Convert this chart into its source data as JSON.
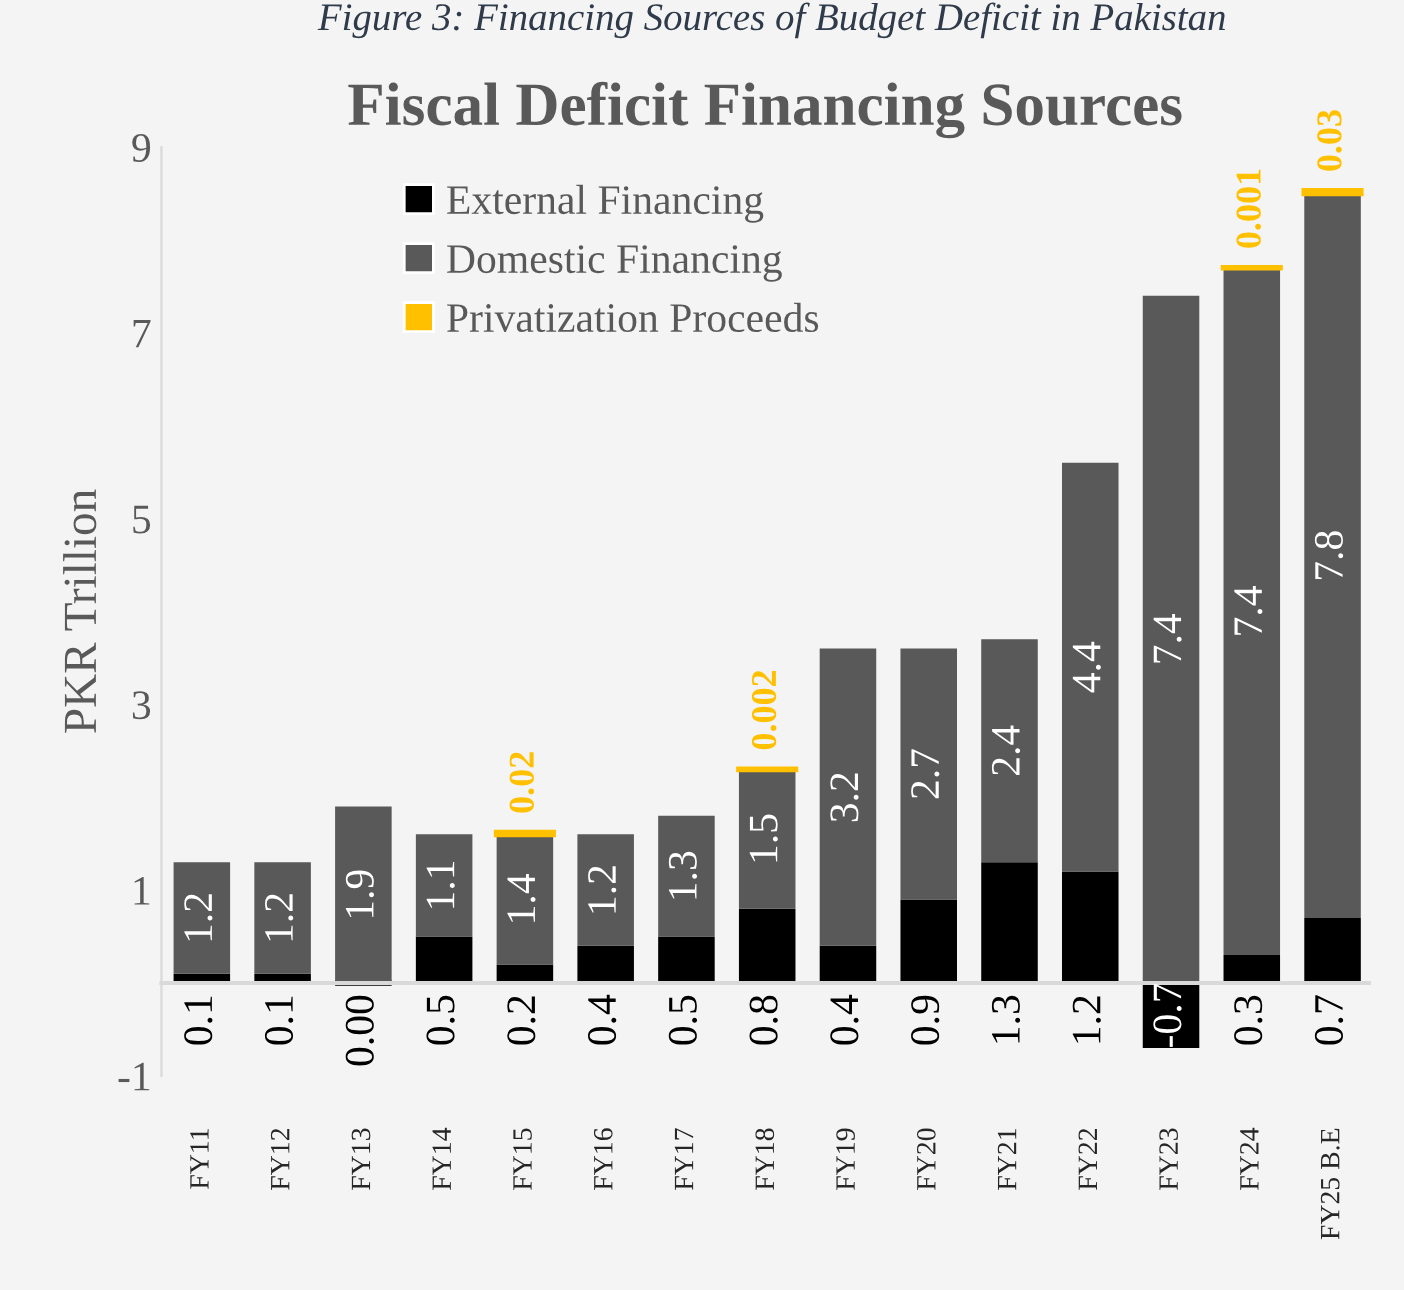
{
  "chart_data": {
    "type": "bar",
    "stacked": true,
    "title": "Fiscal Deficit Financing Sources",
    "subtitle": "Figure 3: Financing Sources of Budget Deficit in Pakistan",
    "ylabel": "PKR Trillion",
    "categories": [
      "FY11",
      "FY12",
      "FY13",
      "FY14",
      "FY15",
      "FY16",
      "FY17",
      "FY18",
      "FY19",
      "FY20",
      "FY21",
      "FY22",
      "FY23",
      "FY24",
      "FY25 B.E"
    ],
    "series": [
      {
        "name": "External Financing",
        "color": "#000000",
        "values": [
          0.1,
          0.1,
          0.0,
          0.5,
          0.2,
          0.4,
          0.5,
          0.8,
          0.4,
          0.9,
          1.3,
          1.2,
          -0.7,
          0.3,
          0.7
        ],
        "value_labels": [
          "0.1",
          "0.1",
          "0.00",
          "0.5",
          "0.2",
          "0.4",
          "0.5",
          "0.8",
          "0.4",
          "0.9",
          "1.3",
          "1.2",
          "-0.7",
          "0.3",
          "0.7"
        ]
      },
      {
        "name": "Domestic Financing",
        "color": "#595959",
        "values": [
          1.2,
          1.2,
          1.9,
          1.1,
          1.4,
          1.2,
          1.3,
          1.5,
          3.2,
          2.7,
          2.4,
          4.4,
          7.4,
          7.4,
          7.8
        ],
        "value_labels": [
          "1.2",
          "1.2",
          "1.9",
          "1.1",
          "1.4",
          "1.2",
          "1.3",
          "1.5",
          "3.2",
          "2.7",
          "2.4",
          "4.4",
          "7.4",
          "7.4",
          "7.8"
        ]
      },
      {
        "name": "Privatization Proceeds",
        "color": "#ffc000",
        "values": [
          null,
          null,
          null,
          null,
          0.02,
          null,
          null,
          0.002,
          null,
          null,
          null,
          null,
          null,
          0.001,
          0.03
        ],
        "value_labels": [
          null,
          null,
          null,
          null,
          "0.02",
          null,
          null,
          "0.002",
          null,
          null,
          null,
          null,
          null,
          "0.001",
          "0.03"
        ]
      }
    ],
    "ylim": [
      -1,
      9
    ],
    "yticks": [
      -1,
      1,
      3,
      5,
      7,
      9
    ],
    "legend": "top left",
    "grid": false
  }
}
